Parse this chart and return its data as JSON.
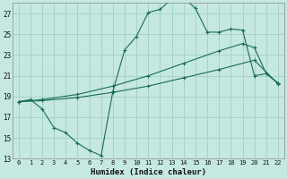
{
  "xlabel": "Humidex (Indice chaleur)",
  "background_color": "#c5e8e0",
  "grid_color": "#a0cfc8",
  "line_color": "#1a6b5a",
  "xlim": [
    -0.5,
    22.5
  ],
  "ylim": [
    13,
    28
  ],
  "yticks": [
    13,
    15,
    17,
    19,
    21,
    23,
    25,
    27
  ],
  "xticks": [
    0,
    1,
    2,
    3,
    4,
    5,
    6,
    7,
    8,
    9,
    10,
    11,
    12,
    13,
    14,
    15,
    16,
    17,
    18,
    19,
    20,
    21,
    22
  ],
  "line1_x": [
    0,
    1,
    2,
    3,
    4,
    5,
    6,
    7,
    8,
    9,
    10,
    11,
    12,
    13,
    14,
    15,
    16,
    17,
    18,
    19,
    20,
    21,
    22
  ],
  "line1_y": [
    18.5,
    18.7,
    17.8,
    16.0,
    15.5,
    14.5,
    13.8,
    13.3,
    19.5,
    23.5,
    24.8,
    27.1,
    27.4,
    28.4,
    28.5,
    27.5,
    25.2,
    25.2,
    25.5,
    25.4,
    21.0,
    21.2,
    20.3
  ],
  "line2_x": [
    0,
    2,
    5,
    8,
    11,
    14,
    17,
    19,
    20,
    21,
    22
  ],
  "line2_y": [
    18.5,
    18.7,
    19.2,
    20.0,
    21.0,
    22.2,
    23.4,
    24.1,
    23.7,
    21.2,
    20.3
  ],
  "line3_x": [
    0,
    2,
    5,
    8,
    11,
    14,
    17,
    20,
    22
  ],
  "line3_y": [
    18.5,
    18.6,
    18.9,
    19.4,
    20.0,
    20.8,
    21.6,
    22.5,
    20.2
  ]
}
